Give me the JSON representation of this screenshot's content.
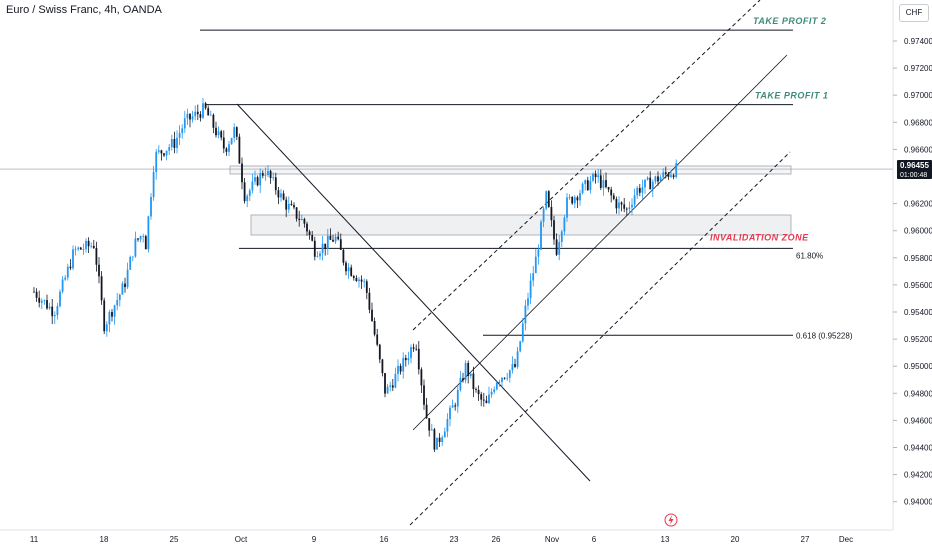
{
  "header": {
    "title": "Euro / Swiss Franc, 4h, OANDA",
    "currency": "CHF"
  },
  "price_marker": {
    "price": "0.96455",
    "countdown": "01:00:48"
  },
  "colors": {
    "up": "#2196f3",
    "down": "#131722",
    "invalidation": "#e53950",
    "take_profit": "#3c8a7a",
    "zone_fill": "#eef0f2",
    "lightning": "#e53950"
  },
  "chart_data": {
    "type": "candlestick",
    "symbol": "Euro / Swiss Franc",
    "timeframe": "4h",
    "broker": "OANDA",
    "currency": "CHF",
    "y_ticks": [
      "0.97400",
      "0.97200",
      "0.97000",
      "0.96800",
      "0.96600",
      "0.96200",
      "0.96000",
      "0.95800",
      "0.95600",
      "0.95400",
      "0.95200",
      "0.95000",
      "0.94800",
      "0.94600",
      "0.94400",
      "0.94200",
      "0.94000"
    ],
    "ylim": [
      0.9388,
      0.9755
    ],
    "x_ticks": [
      "11",
      "18",
      "25",
      "Oct",
      "9",
      "16",
      "23",
      "26",
      "Nov",
      "6",
      "13",
      "20",
      "27",
      "Dec"
    ],
    "current_price": 0.96455,
    "approx_close_path": [
      {
        "x": "Sep 11",
        "y": 0.9555
      },
      {
        "x": "Sep 13",
        "y": 0.954
      },
      {
        "x": "Sep 15",
        "y": 0.9585
      },
      {
        "x": "Sep 17",
        "y": 0.959
      },
      {
        "x": "Sep 18",
        "y": 0.953
      },
      {
        "x": "Sep 20",
        "y": 0.956
      },
      {
        "x": "Sep 21",
        "y": 0.959
      },
      {
        "x": "Sep 22",
        "y": 0.96
      },
      {
        "x": "Sep 22",
        "y": 0.958
      },
      {
        "x": "Sep 23",
        "y": 0.9655
      },
      {
        "x": "Sep 25",
        "y": 0.9665
      },
      {
        "x": "Sep 26",
        "y": 0.968
      },
      {
        "x": "Sep 28",
        "y": 0.969
      },
      {
        "x": "Sep 30",
        "y": 0.966
      },
      {
        "x": "Oct 1",
        "y": 0.9675
      },
      {
        "x": "Oct 2",
        "y": 0.9625
      },
      {
        "x": "Oct 4",
        "y": 0.9645
      },
      {
        "x": "Oct 6",
        "y": 0.962
      },
      {
        "x": "Oct 8",
        "y": 0.9605
      },
      {
        "x": "Oct 9",
        "y": 0.9585
      },
      {
        "x": "Oct 11",
        "y": 0.9595
      },
      {
        "x": "Oct 12",
        "y": 0.9575
      },
      {
        "x": "Oct 14",
        "y": 0.956
      },
      {
        "x": "Oct 16",
        "y": 0.948
      },
      {
        "x": "Oct 18",
        "y": 0.9505
      },
      {
        "x": "Oct 19",
        "y": 0.952
      },
      {
        "x": "Oct 20",
        "y": 0.9465
      },
      {
        "x": "Oct 21",
        "y": 0.944
      },
      {
        "x": "Oct 23",
        "y": 0.9475
      },
      {
        "x": "Oct 24",
        "y": 0.95
      },
      {
        "x": "Oct 25",
        "y": 0.948
      },
      {
        "x": "Oct 26",
        "y": 0.947
      },
      {
        "x": "Oct 27",
        "y": 0.949
      },
      {
        "x": "Oct 29",
        "y": 0.95
      },
      {
        "x": "Oct 30",
        "y": 0.9545
      },
      {
        "x": "Oct 31",
        "y": 0.958
      },
      {
        "x": "Nov 1",
        "y": 0.9625
      },
      {
        "x": "Nov 2",
        "y": 0.9585
      },
      {
        "x": "Nov 3",
        "y": 0.962
      },
      {
        "x": "Nov 6",
        "y": 0.964
      },
      {
        "x": "Nov 8",
        "y": 0.962
      },
      {
        "x": "Nov 9",
        "y": 0.9615
      },
      {
        "x": "Nov 10",
        "y": 0.963
      },
      {
        "x": "Nov 12",
        "y": 0.9638
      },
      {
        "x": "Nov 14",
        "y": 0.96455
      }
    ],
    "horizontal_levels": [
      {
        "label": "TAKE PROFIT 2",
        "price": 0.9748
      },
      {
        "label": "TAKE PROFIT 1",
        "price": 0.9693
      },
      {
        "label": "INVALIDATION ZONE",
        "price": 0.9587
      },
      {
        "label": "61.80%",
        "price": 0.9587
      },
      {
        "label": "0.618 (0.95228)",
        "price": 0.95228
      }
    ]
  },
  "annotations": {
    "take_profit_2": "TAKE PROFIT 2",
    "take_profit_1": "TAKE PROFIT 1",
    "invalidation": "INVALIDATION ZONE",
    "fib_pct": "61.80%",
    "fib_level": "0.618 (0.95228)"
  }
}
